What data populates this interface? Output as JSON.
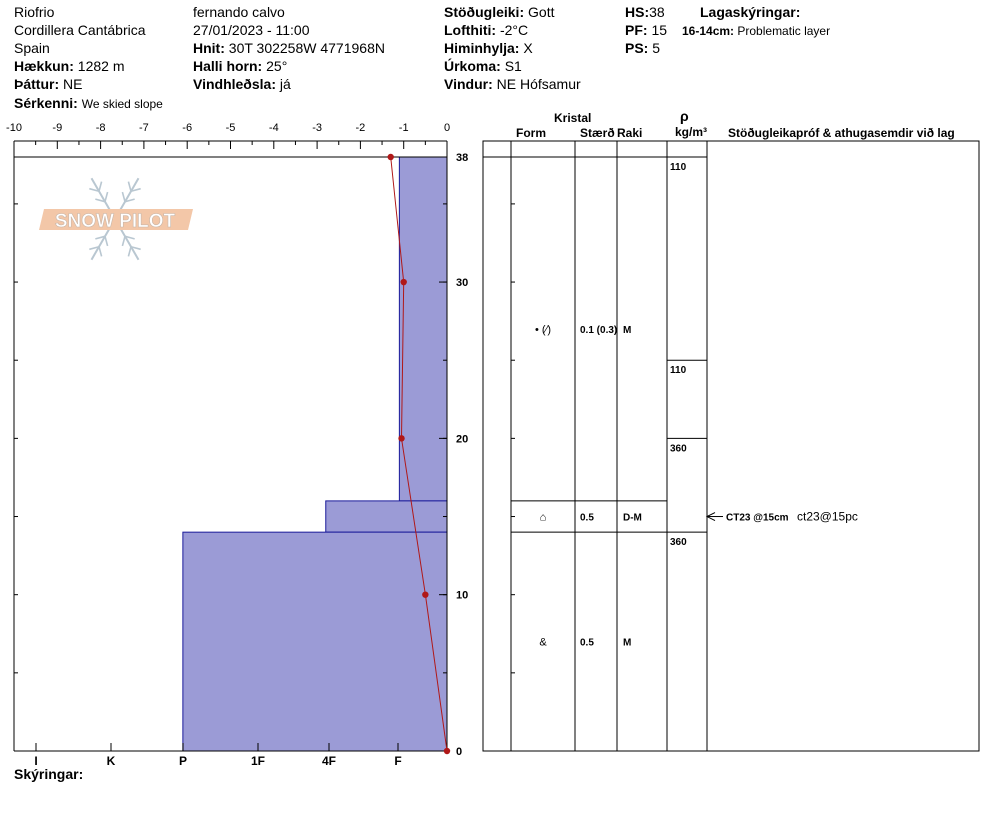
{
  "header": {
    "col1": {
      "location": "Riofrio",
      "range": "Cordillera Cantábrica",
      "country": "Spain",
      "elevation_label": "Hækkun:",
      "elevation_value": "1282 m",
      "aspect_label": "Þáttur:",
      "aspect_value": "NE",
      "features_label": "Sérkenni:",
      "features_value": "We skied slope"
    },
    "col2": {
      "observer": "fernando calvo",
      "datetime": "27/01/2023 - 11:00",
      "coords_label": "Hnit:",
      "coords_value": "30T 302258W 4771968N",
      "slope_label": "Halli horn:",
      "slope_value": "25°",
      "wind_loading_label": "Vindhleðsla:",
      "wind_loading_value": "já"
    },
    "col3": {
      "stability_label": "Stöðugleiki:",
      "stability_value": "Gott",
      "air_temp_label": "Lofthiti:",
      "air_temp_value": "-2°C",
      "sky_label": "Himinhylja:",
      "sky_value": "X",
      "precip_label": "Úrkoma:",
      "precip_value": "S1",
      "wind_label": "Vindur:",
      "wind_value": "NE Hófsamur"
    },
    "col4": {
      "hs_label": "HS:",
      "hs_value": "38",
      "pf_label": "PF:",
      "pf_value": "15",
      "ps_label": "PS:",
      "ps_value": "5"
    },
    "col5": {
      "layer_notes_label": "Lagaskýringar:",
      "layer_note_depth": "16-14cm:",
      "layer_note_text": "Problematic layer"
    }
  },
  "logo": {
    "text": "SNOW PILOT"
  },
  "columns": {
    "crystal": "Kristal",
    "form": "Form",
    "size": "Stærð",
    "moisture": "Raki",
    "density_symbol": "ρ",
    "density_unit": "kg/m³",
    "tests": "Stöðugleikapróf & athugasemdir við lag"
  },
  "footer": {
    "comments_label": "Skýringar:"
  },
  "chart_data": {
    "type": "snow_profile",
    "temperature_axis": {
      "ticks": [
        "-10",
        "-9",
        "-8",
        "-7",
        "-6",
        "-5",
        "-4",
        "-3",
        "-2",
        "-1",
        "0"
      ],
      "range": [
        -10,
        0
      ]
    },
    "height_axis": {
      "ticks": [
        "0",
        "10",
        "20",
        "30",
        "38"
      ],
      "range": [
        0,
        38
      ]
    },
    "hardness_axis": {
      "ticks": [
        "I",
        "K",
        "P",
        "1F",
        "4F",
        "F"
      ]
    },
    "hardness_profile": [
      {
        "top": 38,
        "bottom": 16,
        "temp_edge": -1.1
      },
      {
        "top": 16,
        "bottom": 14,
        "temp_edge": -2.8
      },
      {
        "top": 14,
        "bottom": 0,
        "temp_edge": -6.1
      }
    ],
    "temperature_profile": [
      {
        "height": 38,
        "temp": -1.3
      },
      {
        "height": 30,
        "temp": -1.0
      },
      {
        "height": 20,
        "temp": -1.05
      },
      {
        "height": 10,
        "temp": -0.5
      },
      {
        "height": 0,
        "temp": 0
      }
    ],
    "layers": [
      {
        "top": 38,
        "bottom": 16,
        "form": "• (⁄)",
        "size": "0.1 (0.3)",
        "moisture": "M"
      },
      {
        "top": 16,
        "bottom": 14,
        "form": "⌂",
        "size": "0.5",
        "moisture": "D-M"
      },
      {
        "top": 14,
        "bottom": 0,
        "form": "&",
        "size": "0.5",
        "moisture": "M"
      }
    ],
    "density": [
      {
        "top": 38,
        "bottom": 25,
        "value": "110"
      },
      {
        "top": 25,
        "bottom": 20,
        "value": "110"
      },
      {
        "top": 20,
        "bottom": 14,
        "value": "360"
      },
      {
        "top": 14,
        "bottom": 0,
        "value": "360"
      }
    ],
    "tests": [
      {
        "height": 15,
        "label": "CT23 @15cm",
        "comment": "ct23@15pc"
      }
    ]
  }
}
